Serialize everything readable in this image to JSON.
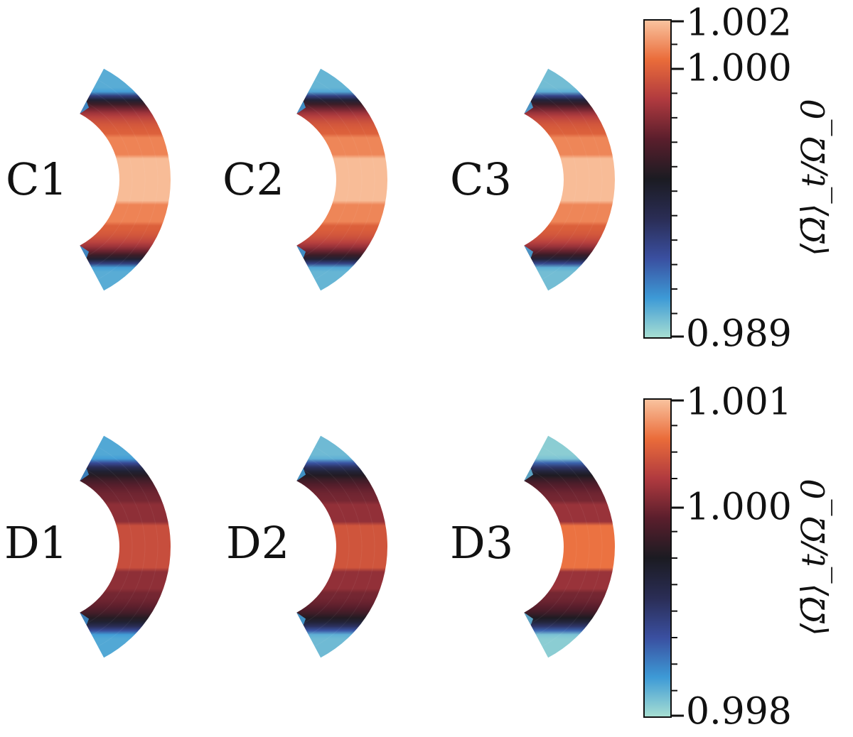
{
  "chart_data": [
    {
      "type": "heatmap",
      "row": "C",
      "panels": [
        {
          "label": "C1",
          "equator_peak": 1.00185,
          "mid_lat_band": 1.0008,
          "pole_min": 0.9902
        },
        {
          "label": "C2",
          "equator_peak": 1.00185,
          "mid_lat_band": 1.00085,
          "pole_min": 0.99
        },
        {
          "label": "C3",
          "equator_peak": 1.00185,
          "mid_lat_band": 1.00085,
          "pole_min": 0.9898
        }
      ],
      "colorbar": {
        "label": "⟨Ω̄⟩_t/Ω_0",
        "min": 0.989,
        "max": 1.002,
        "tick_labels": [
          "1.002",
          "1.000",
          "0.989"
        ],
        "tick_values": [
          1.002,
          1.0,
          0.989
        ],
        "minor_ticks": [
          0.99,
          0.991,
          0.992,
          0.993,
          0.994,
          0.995,
          0.996,
          0.997,
          0.998,
          0.999,
          1.001
        ],
        "colors": [
          "#a8dfd2",
          "#3d9ad6",
          "#3a4fa0",
          "#2a2d55",
          "#1b1b22",
          "#5a1e2c",
          "#b03a3f",
          "#ea6c3a",
          "#f9c4a0"
        ]
      }
    },
    {
      "type": "heatmap",
      "row": "D",
      "panels": [
        {
          "label": "D1",
          "equator_peak": 1.0004,
          "mid_lat_band": 1.0001,
          "pole_min": 0.9983
        },
        {
          "label": "D2",
          "equator_peak": 1.00045,
          "mid_lat_band": 1.00012,
          "pole_min": 0.9982
        },
        {
          "label": "D3",
          "equator_peak": 1.00065,
          "mid_lat_band": 1.00015,
          "pole_min": 0.9981
        }
      ],
      "colorbar": {
        "label": "⟨Ω̄⟩_t/Ω_0",
        "min": 0.998,
        "max": 1.001,
        "tick_labels": [
          "1.001",
          "1.000",
          "0.998"
        ],
        "tick_values": [
          1.001,
          1.0,
          0.998
        ],
        "minor_ticks": [
          0.99825,
          0.9985,
          0.99875,
          0.999,
          0.99925,
          0.9995,
          0.99975,
          1.00025,
          1.0005,
          1.00075
        ],
        "colors": [
          "#a8dfd2",
          "#3d9ad6",
          "#3a4fa0",
          "#2a2d55",
          "#1b1b22",
          "#5a1e2c",
          "#b03a3f",
          "#ea6c3a",
          "#f9c4a0"
        ]
      }
    }
  ]
}
